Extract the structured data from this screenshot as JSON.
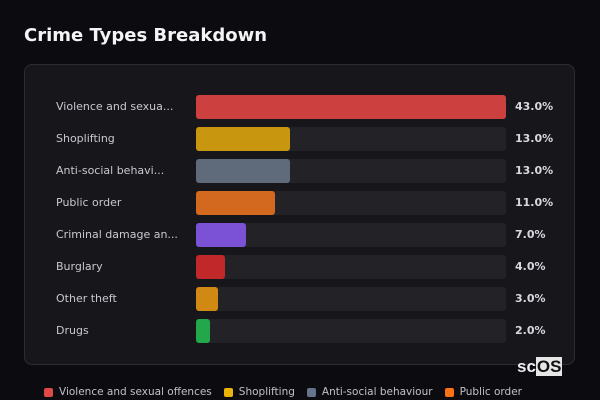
{
  "title": "Crime Types Breakdown",
  "chart_data": {
    "type": "bar",
    "orientation": "horizontal",
    "title": "Crime Types Breakdown",
    "categories": [
      "Violence and sexua...",
      "Shoplifting",
      "Anti-social behavi...",
      "Public order",
      "Criminal damage an...",
      "Burglary",
      "Other theft",
      "Drugs"
    ],
    "values": [
      43.0,
      13.0,
      13.0,
      11.0,
      7.0,
      4.0,
      3.0,
      2.0
    ],
    "value_labels": [
      "43.0%",
      "13.0%",
      "13.0%",
      "11.0%",
      "7.0%",
      "4.0%",
      "3.0%",
      "2.0%"
    ],
    "colors": [
      "#cc4040",
      "#c9970f",
      "#5f6b7b",
      "#d2691e",
      "#7b52d6",
      "#c0282a",
      "#d08a14",
      "#22a84a"
    ],
    "xlim": [
      0,
      43
    ],
    "grid": false
  },
  "legend": [
    {
      "label": "Violence and sexual offences",
      "color": "#e04848"
    },
    {
      "label": "Shoplifting",
      "color": "#eab308"
    },
    {
      "label": "Anti-social behaviour",
      "color": "#64748b"
    },
    {
      "label": "Public order",
      "color": "#f97316"
    }
  ],
  "logo": {
    "text": "scOS"
  }
}
